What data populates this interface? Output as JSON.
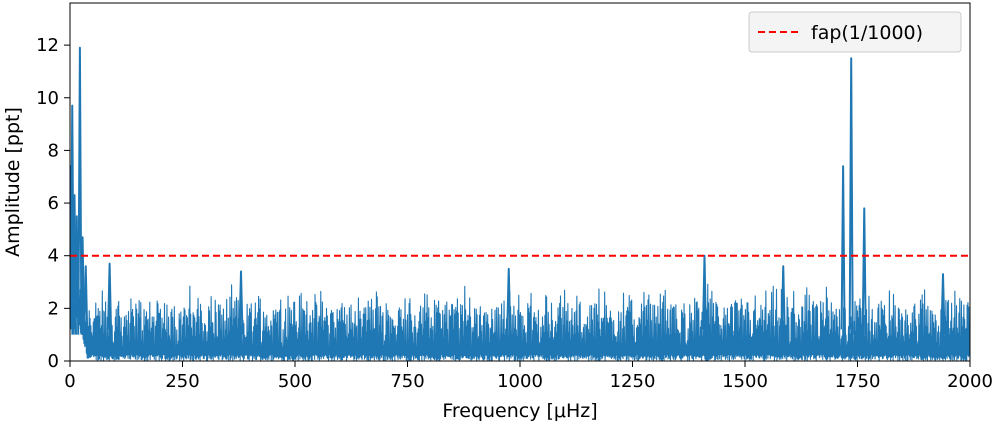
{
  "chart_data": {
    "type": "line",
    "title": "",
    "xlabel": "Frequency [μHz]",
    "ylabel": "Amplitude [ppt]",
    "xlim": [
      0,
      2000
    ],
    "ylim": [
      0,
      13.6
    ],
    "x_ticks": [
      0,
      250,
      500,
      750,
      1000,
      1250,
      1500,
      1750,
      2000
    ],
    "x_tick_labels": [
      "0",
      "250",
      "500",
      "750",
      "1000",
      "1250",
      "1500",
      "1750",
      "2000"
    ],
    "y_ticks": [
      0,
      2,
      4,
      6,
      8,
      10,
      12
    ],
    "y_tick_labels": [
      "0",
      "2",
      "4",
      "6",
      "8",
      "10",
      "12"
    ],
    "grid": false,
    "legend": {
      "position": "top-right",
      "entries": [
        "fap(1/1000)"
      ]
    },
    "series": [
      {
        "kind": "amplitude-spectrum",
        "color": "#1f77b4",
        "noise_band": [
          0.5,
          3.0
        ],
        "peaks": [
          {
            "x": 2,
            "y": 7.4
          },
          {
            "x": 5,
            "y": 9.7
          },
          {
            "x": 10,
            "y": 6.3
          },
          {
            "x": 15,
            "y": 5.5
          },
          {
            "x": 22,
            "y": 11.9
          },
          {
            "x": 28,
            "y": 4.7
          },
          {
            "x": 35,
            "y": 3.6
          },
          {
            "x": 88,
            "y": 3.7
          },
          {
            "x": 380,
            "y": 3.4
          },
          {
            "x": 975,
            "y": 3.5
          },
          {
            "x": 1410,
            "y": 4.0
          },
          {
            "x": 1585,
            "y": 3.6
          },
          {
            "x": 1718,
            "y": 7.4
          },
          {
            "x": 1736,
            "y": 11.5
          },
          {
            "x": 1765,
            "y": 5.8
          },
          {
            "x": 1940,
            "y": 3.3
          }
        ]
      },
      {
        "name": "fap(1/1000)",
        "kind": "threshold",
        "color": "#ff0000",
        "linestyle": "dashed",
        "y": 4.0
      }
    ]
  }
}
